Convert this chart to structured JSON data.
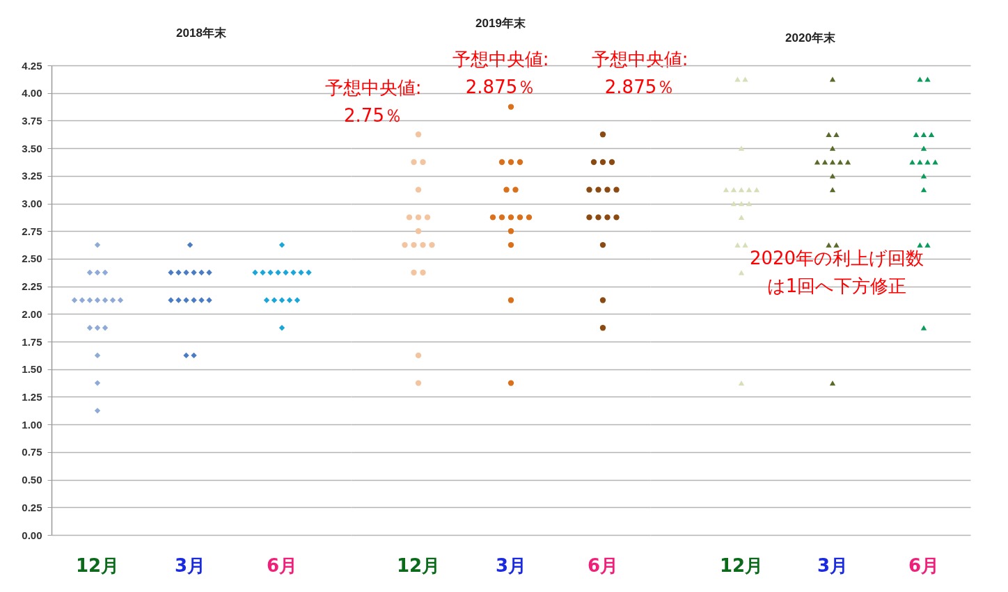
{
  "chart_data": [
    {
      "type": "scatter",
      "title": "2018年末",
      "categories": [
        "12月",
        "3月",
        "6月"
      ],
      "series": [
        {
          "color": "#8eaad6",
          "marker": "diamond",
          "x": [
            "12月",
            "12月",
            "12月",
            "12月",
            "12月",
            "12月",
            "12月",
            "12月",
            "12月",
            "12月",
            "12月",
            "12月",
            "12月",
            "12月",
            "12月",
            "12月",
            "12月"
          ],
          "values": [
            2.625,
            2.375,
            2.375,
            2.375,
            2.125,
            2.125,
            2.125,
            2.125,
            2.125,
            2.125,
            2.125,
            1.875,
            1.875,
            1.875,
            1.625,
            1.375,
            1.125
          ]
        },
        {
          "color": "#4a7cc4",
          "marker": "diamond",
          "x": [
            "3月",
            "3月",
            "3月",
            "3月",
            "3月",
            "3月",
            "3月",
            "3月",
            "3月",
            "3月",
            "3月",
            "3月",
            "3月",
            "3月",
            "3月"
          ],
          "values": [
            2.625,
            2.375,
            2.375,
            2.375,
            2.375,
            2.375,
            2.375,
            2.125,
            2.125,
            2.125,
            2.125,
            2.125,
            2.125,
            1.625,
            1.625
          ]
        },
        {
          "color": "#1aa6d8",
          "marker": "diamond",
          "x": [
            "6月",
            "6月",
            "6月",
            "6月",
            "6月",
            "6月",
            "6月",
            "6月",
            "6月",
            "6月",
            "6月",
            "6月",
            "6月",
            "6月",
            "6月"
          ],
          "values": [
            2.625,
            2.375,
            2.375,
            2.375,
            2.375,
            2.375,
            2.375,
            2.375,
            2.375,
            2.125,
            2.125,
            2.125,
            2.125,
            2.125,
            1.875
          ]
        }
      ],
      "ylim": [
        0,
        4.25
      ],
      "yticks": [
        {
          "value": 0,
          "label": "0.00"
        },
        0.25,
        {
          "value": 0.5,
          "label": "0.50"
        },
        0.75,
        {
          "value": 1,
          "label": "1.00"
        },
        1.25,
        {
          "value": 1.5,
          "label": "1.50"
        },
        1.75,
        {
          "value": 2,
          "label": "2.00"
        },
        2.25,
        {
          "value": 2.5,
          "label": "2.50"
        },
        2.75,
        {
          "value": 3,
          "label": "3.00"
        },
        3.25,
        {
          "value": 3.5,
          "label": "3.50"
        },
        3.75,
        {
          "value": 4,
          "label": "4.00"
        },
        4.25
      ],
      "grid": "y"
    },
    {
      "type": "scatter",
      "title": "2019年末",
      "categories": [
        "12月",
        "3月",
        "6月"
      ],
      "series": [
        {
          "color": "#f2c4a0",
          "marker": "circle",
          "x": [
            "12月",
            "12月",
            "12月",
            "12月",
            "12月",
            "12月",
            "12月",
            "12月",
            "12月",
            "12月",
            "12月",
            "12月",
            "12月",
            "12月",
            "12月",
            "12月"
          ],
          "values": [
            3.625,
            3.375,
            3.375,
            3.125,
            2.875,
            2.875,
            2.875,
            2.75,
            2.625,
            2.625,
            2.625,
            2.625,
            2.375,
            2.375,
            1.625,
            1.375
          ]
        },
        {
          "color": "#d9701c",
          "marker": "circle",
          "x": [
            "3月",
            "3月",
            "3月",
            "3月",
            "3月",
            "3月",
            "3月",
            "3月",
            "3月",
            "3月",
            "3月",
            "3月",
            "3月",
            "3月",
            "3月"
          ],
          "values": [
            3.875,
            3.375,
            3.375,
            3.375,
            3.125,
            3.125,
            2.875,
            2.875,
            2.875,
            2.875,
            2.875,
            2.75,
            2.625,
            2.125,
            1.375
          ]
        },
        {
          "color": "#8a4a12",
          "marker": "circle",
          "x": [
            "6月",
            "6月",
            "6月",
            "6月",
            "6月",
            "6月",
            "6月",
            "6月",
            "6月",
            "6月",
            "6月",
            "6月",
            "6月",
            "6月",
            "6月"
          ],
          "values": [
            3.625,
            3.375,
            3.375,
            3.375,
            3.125,
            3.125,
            3.125,
            3.125,
            2.875,
            2.875,
            2.875,
            2.875,
            2.625,
            2.125,
            1.875
          ]
        }
      ],
      "ylim": [
        0,
        4.25
      ],
      "yticks": [
        0,
        0.25,
        0.5,
        0.75,
        1,
        1.25,
        1.5,
        1.75,
        2,
        2.25,
        2.5,
        2.75,
        3,
        3.25,
        3.5,
        3.75,
        4,
        4.25
      ],
      "grid": "y",
      "tick_labels": "x",
      "annotations": [
        "予想中央値:2.75％",
        "予想中央値:2.875％",
        "予想中央値:2.875％"
      ]
    },
    {
      "type": "scatter",
      "title": "2020年末",
      "categories": [
        "12月",
        "3月",
        "6月"
      ],
      "series": [
        {
          "color": "#d6dfb8",
          "marker": "triangle",
          "x": [
            "12月",
            "12月",
            "12月",
            "12月",
            "12月",
            "12月",
            "12月",
            "12月",
            "12月",
            "12月",
            "12月",
            "12月",
            "12月",
            "12月",
            "12月",
            "12月"
          ],
          "values": [
            4.125,
            4.125,
            3.5,
            3.125,
            3.125,
            3.125,
            3.125,
            3.125,
            3.0,
            3.0,
            3.0,
            2.875,
            2.625,
            2.625,
            2.375,
            1.375
          ]
        },
        {
          "color": "#5a6a2a",
          "marker": "triangle",
          "x": [
            "3月",
            "3月",
            "3月",
            "3月",
            "3月",
            "3月",
            "3月",
            "3月",
            "3月",
            "3月",
            "3月",
            "3月",
            "3月",
            "3月"
          ],
          "values": [
            4.125,
            3.625,
            3.625,
            3.5,
            3.375,
            3.375,
            3.375,
            3.375,
            3.375,
            3.25,
            3.125,
            2.625,
            2.625,
            1.375
          ]
        },
        {
          "color": "#0a9a5a",
          "marker": "triangle",
          "x": [
            "6月",
            "6月",
            "6月",
            "6月",
            "6月",
            "6月",
            "6月",
            "6月",
            "6月",
            "6月",
            "6月",
            "6月",
            "6月",
            "6月",
            "6月"
          ],
          "values": [
            4.125,
            4.125,
            3.625,
            3.625,
            3.625,
            3.5,
            3.375,
            3.375,
            3.375,
            3.375,
            3.25,
            3.125,
            2.625,
            2.625,
            1.875
          ]
        }
      ],
      "ylim": [
        0,
        4.25
      ],
      "yticks": [
        0,
        0.25,
        0.5,
        0.75,
        1,
        1.25,
        1.5,
        1.75,
        2,
        2.25,
        2.5,
        2.75,
        3,
        3.25,
        3.5,
        3.75,
        4,
        4.25
      ],
      "grid": "y",
      "tick_labels": "x",
      "annotations": [
        "2020年の利上げ回数は1回へ下方修正"
      ]
    }
  ]
}
